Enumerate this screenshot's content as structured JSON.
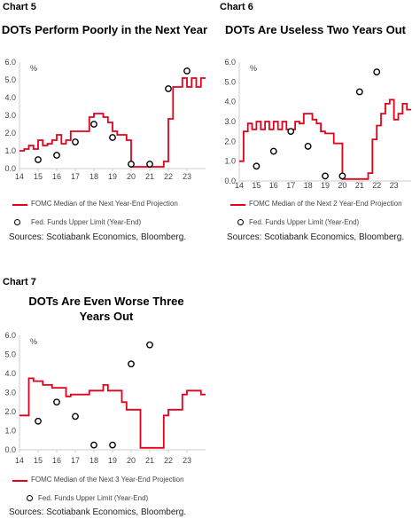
{
  "colors": {
    "projection": "#e3001b",
    "funds": "#000000",
    "axis": "#cccccc"
  },
  "chart_data": [
    {
      "type": "line",
      "label": "Chart 5",
      "title": "DOTs Perform Poorly in the Next Year",
      "ylabel": "%",
      "ylim": [
        0,
        6
      ],
      "xlim": [
        14,
        24
      ],
      "yticks": [
        "0.0",
        "1.0",
        "2.0",
        "3.0",
        "4.0",
        "5.0",
        "6.0"
      ],
      "xticks": [
        "14",
        "15",
        "16",
        "17",
        "18",
        "19",
        "20",
        "21",
        "22",
        "23"
      ],
      "grid": false,
      "series": [
        {
          "name": "FOMC Median of the Next Year-End Projection",
          "kind": "line",
          "x": [
            14,
            14.25,
            14.25,
            14.5,
            14.5,
            14.75,
            14.75,
            15.0,
            15.0,
            15.25,
            15.25,
            15.5,
            15.5,
            15.75,
            15.75,
            16.0,
            16.0,
            16.25,
            16.25,
            16.5,
            16.5,
            16.75,
            16.75,
            17.0,
            17.0,
            17.25,
            17.25,
            17.5,
            17.5,
            17.75,
            17.75,
            18.0,
            18.0,
            18.25,
            18.25,
            18.5,
            18.5,
            18.75,
            18.75,
            19.0,
            19.0,
            19.25,
            19.25,
            19.5,
            19.5,
            19.75,
            19.75,
            20.0,
            20.0,
            20.25,
            20.25,
            20.5,
            20.5,
            20.75,
            20.75,
            21.0,
            21.0,
            21.25,
            21.25,
            21.5,
            21.5,
            21.75,
            21.75,
            22.0,
            22.0,
            22.25,
            22.25,
            22.5,
            22.5,
            22.75,
            22.75,
            23.0,
            23.0,
            23.25,
            23.25,
            23.5,
            23.5,
            23.75,
            23.75,
            24.0
          ],
          "y": [
            1.0,
            1.0,
            1.1,
            1.1,
            1.3,
            1.3,
            1.1,
            1.1,
            1.6,
            1.6,
            1.3,
            1.3,
            1.4,
            1.4,
            1.6,
            1.6,
            1.9,
            1.9,
            1.4,
            1.4,
            1.6,
            1.6,
            2.1,
            2.1,
            2.1,
            2.1,
            2.1,
            2.1,
            2.1,
            2.1,
            2.9,
            2.9,
            3.1,
            3.1,
            3.1,
            3.1,
            2.9,
            2.9,
            2.6,
            2.6,
            2.1,
            2.1,
            1.9,
            1.9,
            1.9,
            1.9,
            1.6,
            1.6,
            0.1,
            0.1,
            0.1,
            0.1,
            0.1,
            0.1,
            0.1,
            0.1,
            0.1,
            0.1,
            0.1,
            0.1,
            0.1,
            0.1,
            0.4,
            0.4,
            2.8,
            2.8,
            4.6,
            4.6,
            4.6,
            4.6,
            5.1,
            5.1,
            4.6,
            4.6,
            5.1,
            5.1,
            4.6,
            4.6,
            5.1,
            5.1
          ]
        },
        {
          "name": "Fed. Funds Upper Limit (Year-End)",
          "kind": "scatter",
          "x": [
            15,
            16,
            17,
            18,
            19,
            20,
            21,
            22,
            23
          ],
          "y": [
            0.5,
            0.75,
            1.5,
            2.5,
            1.75,
            0.25,
            0.25,
            4.5,
            5.5
          ]
        }
      ],
      "source": "Sources: Scotiabank Economics, Bloomberg."
    },
    {
      "type": "line",
      "label": "Chart 6",
      "title": "DOTs Are Useless Two Years Out",
      "ylabel": "%",
      "ylim": [
        0,
        6
      ],
      "xlim": [
        14,
        24
      ],
      "yticks": [
        "0.0",
        "1.0",
        "2.0",
        "3.0",
        "4.0",
        "5.0",
        "6.0"
      ],
      "xticks": [
        "14",
        "15",
        "16",
        "17",
        "18",
        "19",
        "20",
        "21",
        "22",
        "23"
      ],
      "grid": false,
      "series": [
        {
          "name": "FOMC Median of the Next 2 Year-End Projection",
          "kind": "line",
          "x": [
            14,
            14.25,
            14.25,
            14.5,
            14.5,
            14.75,
            14.75,
            15.0,
            15.0,
            15.25,
            15.25,
            15.5,
            15.5,
            15.75,
            15.75,
            16.0,
            16.0,
            16.25,
            16.25,
            16.5,
            16.5,
            16.75,
            16.75,
            17.0,
            17.0,
            17.25,
            17.25,
            17.5,
            17.5,
            17.75,
            17.75,
            18.0,
            18.0,
            18.25,
            18.25,
            18.5,
            18.5,
            18.75,
            18.75,
            19.0,
            19.0,
            19.25,
            19.25,
            19.5,
            19.5,
            19.75,
            19.75,
            20.0,
            20.0,
            20.25,
            20.25,
            20.5,
            20.5,
            20.75,
            20.75,
            21.0,
            21.0,
            21.25,
            21.25,
            21.5,
            21.5,
            21.75,
            21.75,
            22.0,
            22.0,
            22.25,
            22.25,
            22.5,
            22.5,
            22.75,
            22.75,
            23.0,
            23.0,
            23.25,
            23.25,
            23.5,
            23.5,
            23.75,
            23.75,
            24.0
          ],
          "y": [
            1.0,
            1.0,
            2.5,
            2.5,
            2.9,
            2.9,
            2.6,
            2.6,
            3.0,
            3.0,
            2.6,
            2.6,
            3.0,
            3.0,
            2.6,
            2.6,
            3.0,
            3.0,
            2.6,
            2.6,
            3.0,
            3.0,
            2.6,
            2.6,
            2.6,
            2.6,
            3.0,
            3.0,
            2.9,
            2.9,
            3.4,
            3.4,
            3.4,
            3.4,
            3.1,
            3.1,
            2.9,
            2.9,
            2.5,
            2.5,
            2.4,
            2.4,
            2.4,
            2.4,
            1.9,
            1.9,
            1.9,
            1.9,
            0.1,
            0.1,
            0.1,
            0.1,
            0.1,
            0.1,
            0.1,
            0.1,
            0.1,
            0.1,
            0.1,
            0.1,
            0.4,
            0.4,
            2.1,
            2.1,
            2.8,
            2.8,
            3.4,
            3.4,
            3.9,
            3.9,
            4.1,
            4.1,
            3.1,
            3.1,
            3.4,
            3.4,
            3.9,
            3.9,
            3.6,
            3.6
          ]
        },
        {
          "name": "Fed. Funds Upper Limit (Year-End)",
          "kind": "scatter",
          "x": [
            15,
            16,
            17,
            18,
            19,
            20,
            21,
            22
          ],
          "y": [
            0.75,
            1.5,
            2.5,
            1.75,
            0.25,
            0.25,
            4.5,
            5.5
          ]
        }
      ],
      "source": "Sources: Scotiabank Economics, Bloomberg."
    },
    {
      "type": "line",
      "label": "Chart 7",
      "title": "DOTs Are Even Worse Three Years Out",
      "ylabel": "%",
      "ylim": [
        0,
        6
      ],
      "xlim": [
        14,
        24
      ],
      "yticks": [
        "0.0",
        "1.0",
        "2.0",
        "3.0",
        "4.0",
        "5.0",
        "6.0"
      ],
      "xticks": [
        "14",
        "15",
        "16",
        "17",
        "18",
        "19",
        "20",
        "21",
        "22",
        "23"
      ],
      "grid": false,
      "series": [
        {
          "name": "FOMC Median of the Next 3 Year-End Projection",
          "kind": "line",
          "x": [
            14,
            14.25,
            14.25,
            14.5,
            14.5,
            14.75,
            14.75,
            15.0,
            15.0,
            15.25,
            15.25,
            15.5,
            15.5,
            15.75,
            15.75,
            16.0,
            16.0,
            16.25,
            16.25,
            16.5,
            16.5,
            16.75,
            16.75,
            17.0,
            17.0,
            17.25,
            17.25,
            17.5,
            17.5,
            17.75,
            17.75,
            18.0,
            18.0,
            18.25,
            18.25,
            18.5,
            18.5,
            18.75,
            18.75,
            19.0,
            19.0,
            19.25,
            19.25,
            19.5,
            19.5,
            19.75,
            19.75,
            20.0,
            20.0,
            20.25,
            20.25,
            20.5,
            20.5,
            20.75,
            20.75,
            21.0,
            21.0,
            21.25,
            21.25,
            21.5,
            21.5,
            21.75,
            21.75,
            22.0,
            22.0,
            22.25,
            22.25,
            22.5,
            22.5,
            22.75,
            22.75,
            23.0,
            23.0,
            23.25,
            23.25,
            23.5,
            23.5,
            23.75,
            23.75,
            24.0
          ],
          "y": [
            1.8,
            1.8,
            1.8,
            1.8,
            3.75,
            3.75,
            3.6,
            3.6,
            3.6,
            3.6,
            3.4,
            3.4,
            3.4,
            3.4,
            3.25,
            3.25,
            3.25,
            3.25,
            3.25,
            3.25,
            2.8,
            2.8,
            2.9,
            2.9,
            2.9,
            2.9,
            2.9,
            2.9,
            2.9,
            2.9,
            3.1,
            3.1,
            3.1,
            3.1,
            3.1,
            3.1,
            3.4,
            3.4,
            3.1,
            3.1,
            3.1,
            3.1,
            3.1,
            3.1,
            2.5,
            2.5,
            2.1,
            2.1,
            2.1,
            2.1,
            2.1,
            2.1,
            0.1,
            0.1,
            0.1,
            0.1,
            0.1,
            0.1,
            0.1,
            0.1,
            0.1,
            0.1,
            1.8,
            1.8,
            2.1,
            2.1,
            2.1,
            2.1,
            2.1,
            2.1,
            2.9,
            2.9,
            3.1,
            3.1,
            3.1,
            3.1,
            3.1,
            3.1,
            2.9,
            2.9
          ]
        },
        {
          "name": "Fed. Funds Upper Limit (Year-End)",
          "kind": "scatter",
          "x": [
            15,
            16,
            17,
            18,
            19,
            20,
            21
          ],
          "y": [
            1.5,
            2.5,
            1.75,
            0.25,
            0.25,
            4.5,
            5.5
          ]
        }
      ],
      "source": "Sources: Scotiabank Economics, Bloomberg."
    }
  ]
}
